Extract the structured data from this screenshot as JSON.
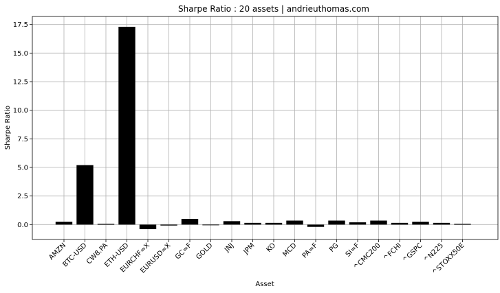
{
  "chart_data": {
    "type": "bar",
    "title": "Sharpe Ratio : 20 assets | andrieuthomas.com",
    "xlabel": "Asset",
    "ylabel": "Sharpe Ratio",
    "categories": [
      "AMZN",
      "BTC-USD",
      "CW8.PA",
      "ETH-USD",
      "EURCHF=X",
      "EURUSD=X",
      "GC=F",
      "GOLD",
      "JNJ",
      "JPM",
      "KO",
      "MCD",
      "PA=F",
      "PG",
      "SI=F",
      "^CMC200",
      "^FCHI",
      "^GSPC",
      "^N225",
      "^STOXX50E"
    ],
    "values": [
      0.25,
      5.2,
      0.08,
      17.3,
      -0.4,
      -0.08,
      0.5,
      -0.02,
      0.3,
      0.15,
      0.15,
      0.35,
      -0.2,
      0.35,
      0.2,
      0.35,
      0.15,
      0.25,
      0.15,
      0.08
    ],
    "ylim": [
      -1.3,
      18.2
    ],
    "yticks": [
      "0.0",
      "2.5",
      "5.0",
      "7.5",
      "10.0",
      "12.5",
      "15.0",
      "17.5"
    ],
    "grid": true,
    "bar_color": "#000000"
  }
}
